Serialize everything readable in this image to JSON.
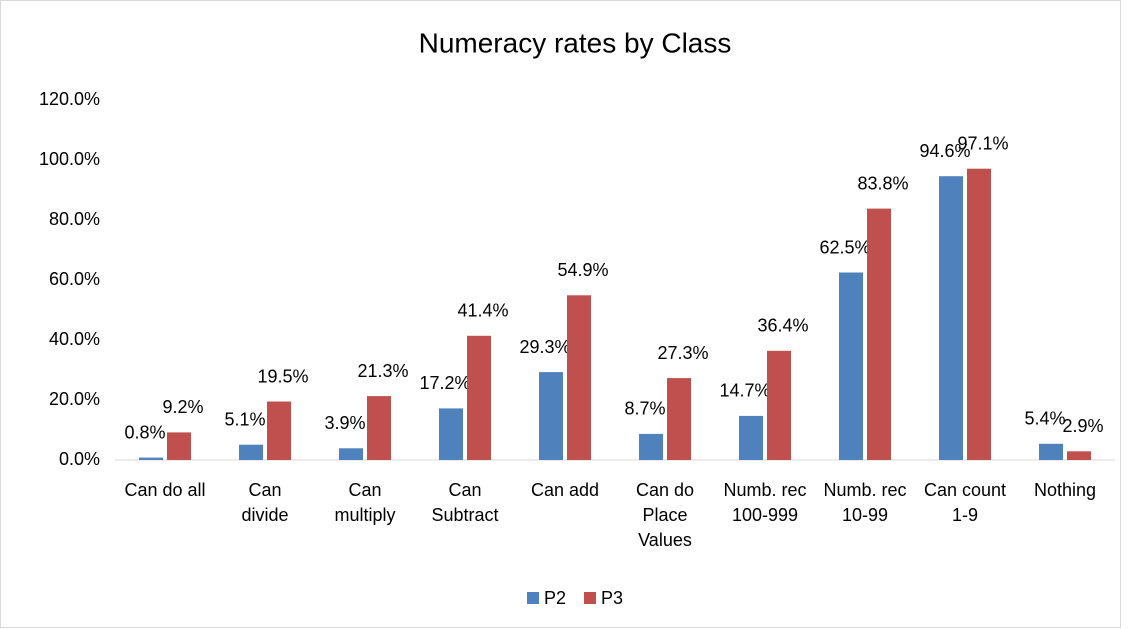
{
  "chart_data": {
    "type": "bar",
    "title": "Numeracy rates by Class",
    "categories": [
      "Can do all",
      "Can\ndivide",
      "Can\nmultiply",
      "Can\nSubtract",
      "Can add",
      "Can do\nPlace\nValues",
      "Numb. rec\n100-999",
      "Numb. rec\n10-99",
      "Can count\n1-9",
      "Nothing"
    ],
    "series": [
      {
        "name": "P2",
        "color": "#4f81bd",
        "values": [
          0.8,
          5.1,
          3.9,
          17.2,
          29.3,
          8.7,
          14.7,
          62.5,
          94.6,
          5.4
        ],
        "value_labels": [
          "0.8%",
          "5.1%",
          "3.9%",
          "17.2%",
          "29.3%",
          "8.7%",
          "14.7%",
          "62.5%",
          "94.6%",
          "5.4%"
        ]
      },
      {
        "name": "P3",
        "color": "#c0504d",
        "values": [
          9.2,
          19.5,
          21.3,
          41.4,
          54.9,
          27.3,
          36.4,
          83.8,
          97.1,
          2.9
        ],
        "value_labels": [
          "9.2%",
          "19.5%",
          "21.3%",
          "41.4%",
          "54.9%",
          "27.3%",
          "36.4%",
          "83.8%",
          "97.1%",
          "2.9%"
        ]
      }
    ],
    "ylim": [
      0,
      120
    ],
    "yticks": [
      {
        "value": 0,
        "label": "0.0%"
      },
      {
        "value": 20,
        "label": "20.0%"
      },
      {
        "value": 40,
        "label": "40.0%"
      },
      {
        "value": 60,
        "label": "60.0%"
      },
      {
        "value": 80,
        "label": "80.0%"
      },
      {
        "value": 100,
        "label": "100.0%"
      },
      {
        "value": 120,
        "label": "120.0%"
      }
    ],
    "grid": false,
    "legend": "bottom"
  }
}
